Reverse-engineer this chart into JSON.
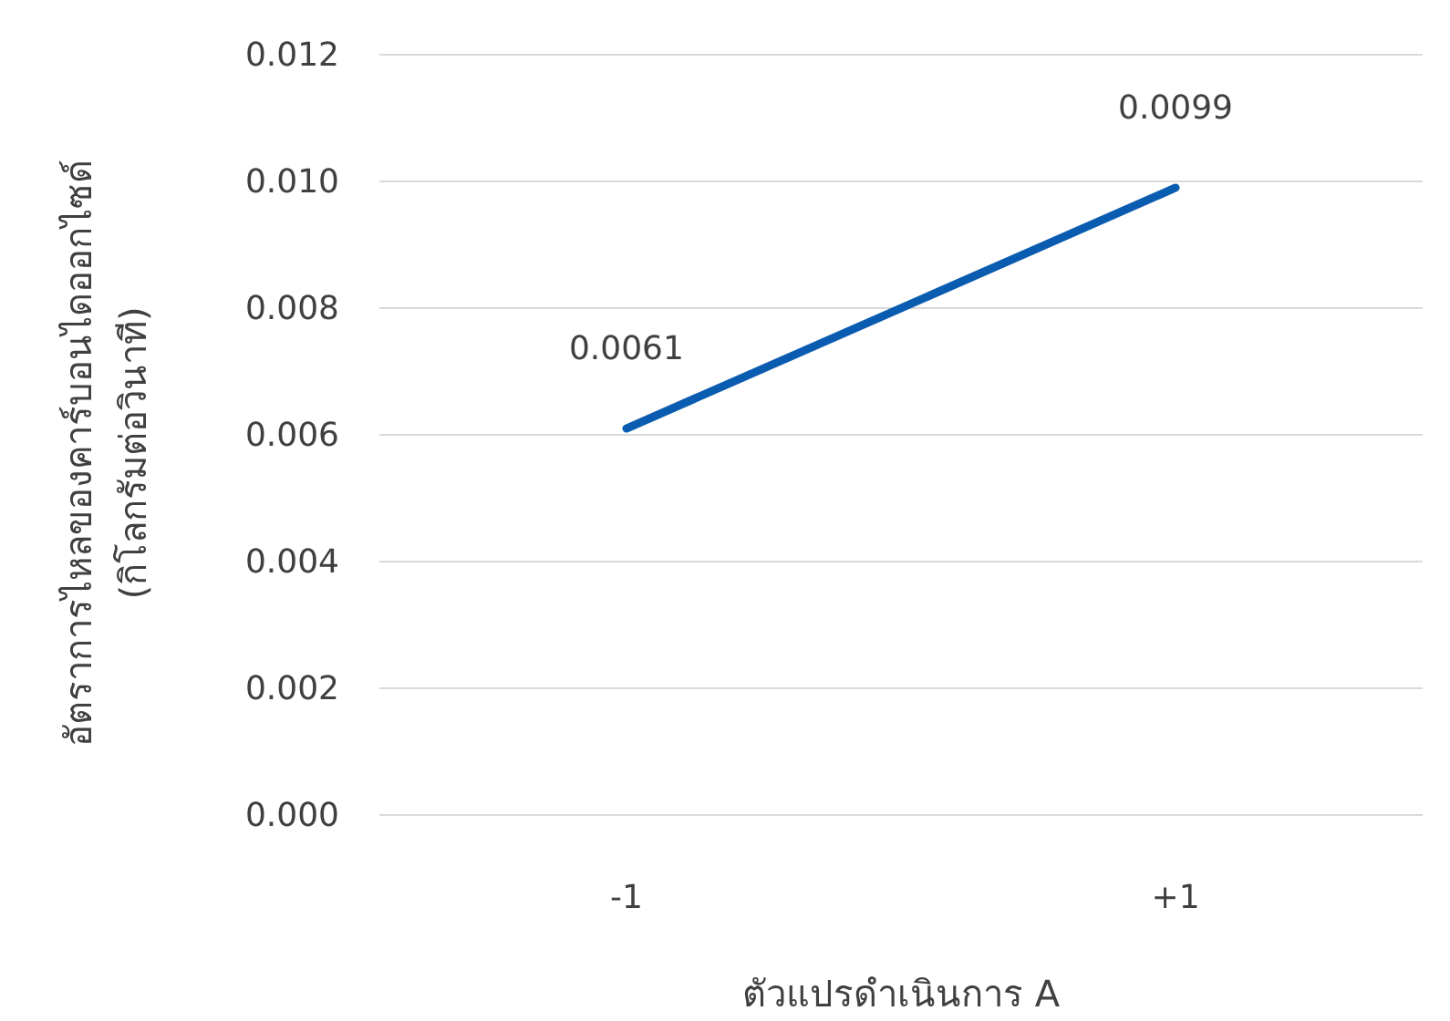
{
  "chart_data": {
    "type": "line",
    "categories": [
      "-1",
      "+1"
    ],
    "series": [
      {
        "color": "#0a5cb0",
        "values": [
          0.0061,
          0.0099
        ]
      }
    ],
    "ylim": [
      0,
      0.012
    ],
    "yticks": [
      {
        "value": 0,
        "label": "0.000"
      },
      {
        "value": 0.002,
        "label": "0.002"
      },
      {
        "value": 0.004,
        "label": "0.004"
      },
      {
        "value": 0.006,
        "label": "0.006"
      },
      {
        "value": 0.008,
        "label": "0.008"
      },
      {
        "value": 0.01,
        "label": "0.010"
      },
      {
        "value": 0.012,
        "label": "0.012"
      }
    ],
    "grid": "y",
    "data_labels": true,
    "marker": "none",
    "line_style": "solid",
    "xlabel": "ตัวแปรดำเนินการ A",
    "ylabel": "อัตราการไหลของคาร์บอนไดออกไซด์\n(กิโลกรัมต่อวินาที)"
  }
}
